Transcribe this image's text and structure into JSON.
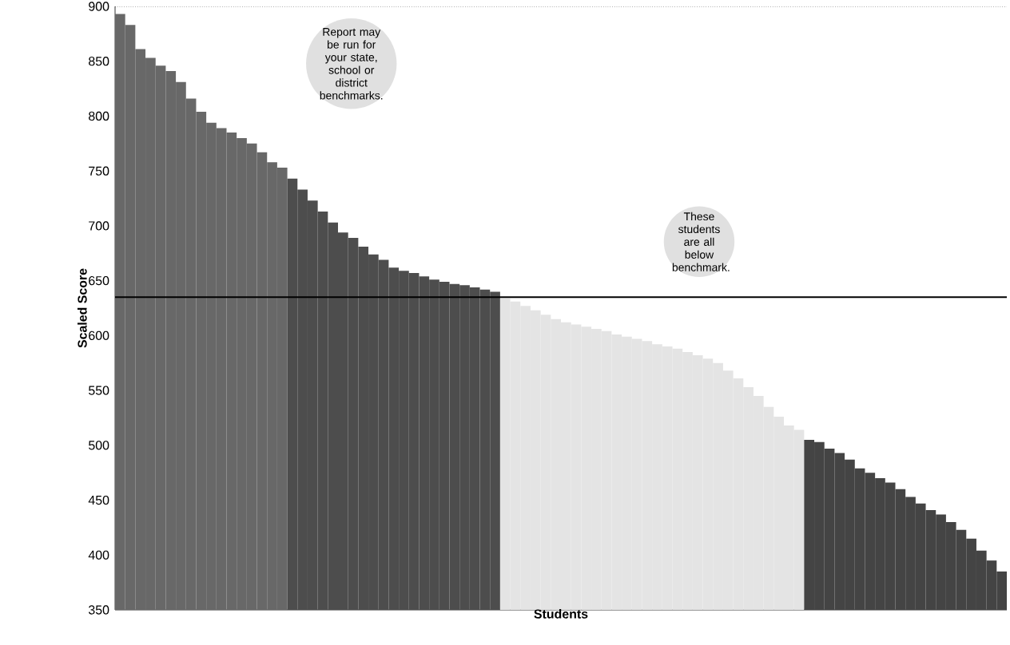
{
  "chart_data": {
    "type": "bar",
    "xlabel": "Students",
    "ylabel": "Scaled Score",
    "categories": [
      null,
      null,
      null,
      null,
      null,
      null,
      null,
      null,
      null,
      null,
      null,
      null,
      null,
      null,
      null,
      null,
      null,
      null,
      null,
      null,
      null,
      null,
      null,
      null,
      null,
      null,
      null,
      null,
      null,
      null,
      null,
      null,
      null,
      null,
      null,
      null,
      null,
      null,
      null,
      null,
      null,
      null,
      null,
      null,
      null,
      null,
      null,
      null,
      null,
      null,
      null,
      null,
      null,
      null,
      null,
      null,
      null,
      null,
      null,
      null,
      null,
      null,
      null,
      null,
      null,
      null,
      null,
      null,
      null,
      null,
      null,
      null,
      null,
      null,
      null,
      null,
      null,
      null,
      null,
      null,
      null,
      null,
      null,
      null,
      null,
      null,
      null,
      null
    ],
    "values": [
      893,
      883,
      861,
      853,
      846,
      841,
      831,
      816,
      804,
      794,
      789,
      785,
      780,
      775,
      767,
      758,
      753,
      743,
      733,
      723,
      713,
      703,
      694,
      689,
      681,
      674,
      669,
      662,
      659,
      657,
      654,
      651,
      649,
      647,
      646,
      644,
      642,
      640,
      634,
      631,
      627,
      623,
      619,
      615,
      612,
      610,
      608,
      606,
      604,
      601,
      599,
      597,
      595,
      592,
      590,
      588,
      585,
      582,
      579,
      575,
      568,
      561,
      553,
      545,
      535,
      526,
      518,
      514,
      505,
      503,
      497,
      493,
      487,
      479,
      475,
      470,
      466,
      460,
      453,
      447,
      441,
      437,
      430,
      423,
      415,
      404,
      395,
      385
    ],
    "colors": [
      "#686868",
      "#686868",
      "#686868",
      "#686868",
      "#686868",
      "#686868",
      "#686868",
      "#686868",
      "#686868",
      "#686868",
      "#686868",
      "#686868",
      "#686868",
      "#686868",
      "#686868",
      "#686868",
      "#686868",
      "#4d4d4d",
      "#4d4d4d",
      "#4d4d4d",
      "#4d4d4d",
      "#4d4d4d",
      "#4d4d4d",
      "#4d4d4d",
      "#4d4d4d",
      "#4d4d4d",
      "#4d4d4d",
      "#4d4d4d",
      "#4d4d4d",
      "#4d4d4d",
      "#4d4d4d",
      "#4d4d4d",
      "#4d4d4d",
      "#4d4d4d",
      "#4d4d4d",
      "#4d4d4d",
      "#4d4d4d",
      "#4d4d4d",
      "#e4e4e4",
      "#e4e4e4",
      "#e4e4e4",
      "#e4e4e4",
      "#e4e4e4",
      "#e4e4e4",
      "#e4e4e4",
      "#e4e4e4",
      "#e4e4e4",
      "#e4e4e4",
      "#e4e4e4",
      "#e4e4e4",
      "#e4e4e4",
      "#e4e4e4",
      "#e4e4e4",
      "#e4e4e4",
      "#e4e4e4",
      "#e4e4e4",
      "#e4e4e4",
      "#e4e4e4",
      "#e4e4e4",
      "#e4e4e4",
      "#e4e4e4",
      "#e4e4e4",
      "#e4e4e4",
      "#e4e4e4",
      "#e4e4e4",
      "#e4e4e4",
      "#e4e4e4",
      "#e4e4e4",
      "#444444",
      "#444444",
      "#444444",
      "#444444",
      "#444444",
      "#444444",
      "#444444",
      "#444444",
      "#444444",
      "#444444",
      "#444444",
      "#444444",
      "#444444",
      "#444444",
      "#444444",
      "#444444",
      "#444444",
      "#444444",
      "#444444",
      "#444444"
    ],
    "ylim": [
      350,
      900
    ],
    "yticks": [
      350,
      400,
      450,
      500,
      550,
      600,
      650,
      700,
      750,
      800,
      850,
      900
    ],
    "ref_lines": [
      {
        "axis": "y",
        "value": 635,
        "color": "#000000"
      }
    ],
    "annotations": [
      "Report may be run for your state, school or district benchmarks.",
      "These students are all below benchmark."
    ]
  }
}
